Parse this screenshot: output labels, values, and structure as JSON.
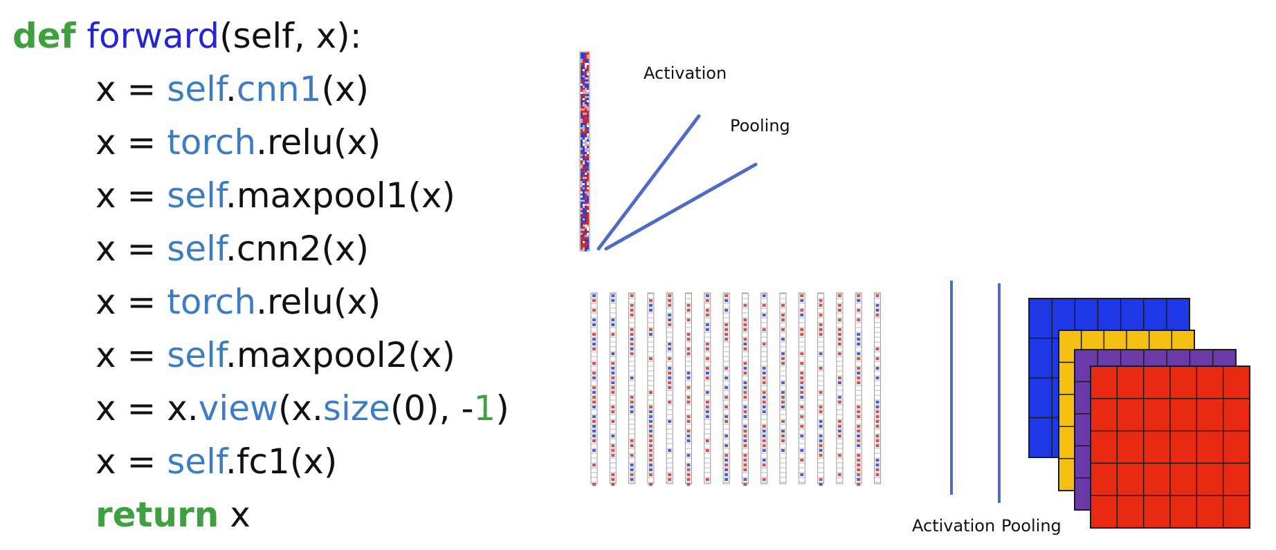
{
  "colors": {
    "keyword": "#3fa040",
    "funcname": "#2424d6",
    "attr": "#3c7cc4",
    "number": "#3fa040",
    "text": "#111111",
    "arrow": "#4f6cc4",
    "map_blue": "#1e38e8",
    "map_yellow": "#f2bf12",
    "map_purple": "#6a3aa8",
    "map_red": "#e82a12"
  },
  "code": {
    "lines": [
      {
        "indent": false,
        "tokens": [
          {
            "text": "def",
            "style": "keyword"
          },
          {
            "text": " ",
            "style": "text"
          },
          {
            "text": "forward",
            "style": "funcname"
          },
          {
            "text": "(self, x):",
            "style": "text"
          }
        ]
      },
      {
        "indent": true,
        "tokens": [
          {
            "text": "x = ",
            "style": "text"
          },
          {
            "text": "self",
            "style": "attr"
          },
          {
            "text": ".",
            "style": "text"
          },
          {
            "text": "cnn1",
            "style": "attr"
          },
          {
            "text": "(x)",
            "style": "text"
          }
        ]
      },
      {
        "indent": true,
        "tokens": [
          {
            "text": "x = ",
            "style": "text"
          },
          {
            "text": "torch",
            "style": "attr"
          },
          {
            "text": ".relu(x)",
            "style": "text"
          }
        ]
      },
      {
        "indent": true,
        "tokens": [
          {
            "text": "x = ",
            "style": "text"
          },
          {
            "text": "self",
            "style": "attr"
          },
          {
            "text": ".maxpool1(x)",
            "style": "text"
          }
        ]
      },
      {
        "indent": true,
        "tokens": [
          {
            "text": "x = ",
            "style": "text"
          },
          {
            "text": "self",
            "style": "attr"
          },
          {
            "text": ".cnn2(x)",
            "style": "text"
          }
        ]
      },
      {
        "indent": true,
        "tokens": [
          {
            "text": "x = ",
            "style": "text"
          },
          {
            "text": "torch",
            "style": "attr"
          },
          {
            "text": ".relu(x)",
            "style": "text"
          }
        ]
      },
      {
        "indent": true,
        "tokens": [
          {
            "text": "x = ",
            "style": "text"
          },
          {
            "text": "self",
            "style": "attr"
          },
          {
            "text": ".maxpool2(x)",
            "style": "text"
          }
        ]
      },
      {
        "indent": true,
        "tokens": [
          {
            "text": "x = x.",
            "style": "text"
          },
          {
            "text": "view",
            "style": "attr"
          },
          {
            "text": "(x.",
            "style": "text"
          },
          {
            "text": "size",
            "style": "attr"
          },
          {
            "text": "(0), -",
            "style": "text"
          },
          {
            "text": "1",
            "style": "number"
          },
          {
            "text": ")",
            "style": "text"
          }
        ]
      },
      {
        "indent": true,
        "tokens": [
          {
            "text": "x = ",
            "style": "text"
          },
          {
            "text": "self",
            "style": "attr"
          },
          {
            "text": ".fc1(x)",
            "style": "text"
          }
        ]
      },
      {
        "indent": true,
        "tokens": [
          {
            "text": "return",
            "style": "keyword"
          },
          {
            "text": " x",
            "style": "text"
          }
        ]
      }
    ]
  },
  "diagram": {
    "top_labels": {
      "activation": "Activation",
      "pooling": "Pooling"
    },
    "bottom_labels": {
      "activation": "Activation",
      "pooling": "Pooling"
    },
    "filter_strip_count": 16,
    "feature_map_stack": [
      "map_blue",
      "map_yellow",
      "map_purple",
      "map_red"
    ]
  }
}
